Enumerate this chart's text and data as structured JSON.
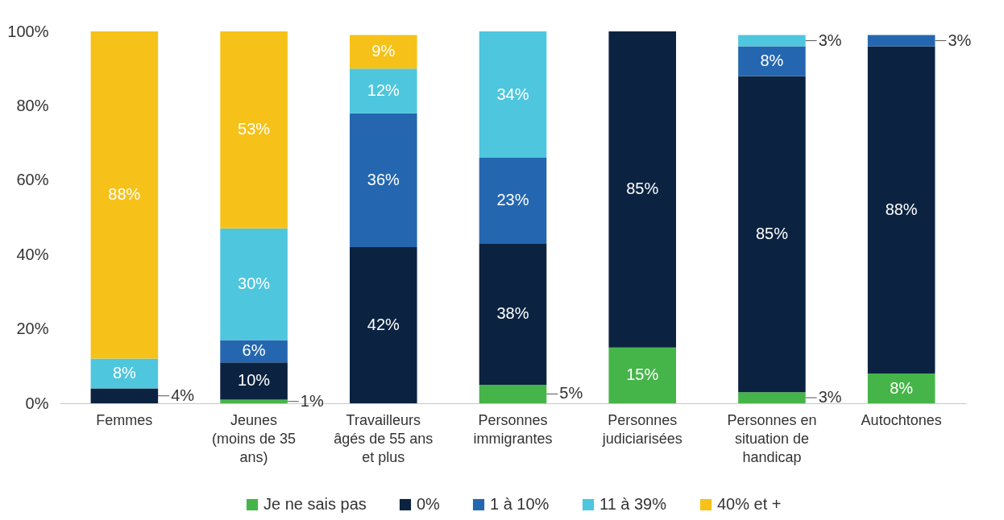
{
  "chart_data": {
    "type": "bar",
    "stacked": true,
    "categories": [
      "Femmes",
      "Jeunes (moins de 35 ans)",
      "Travailleurs âgés de 55 ans et plus",
      "Personnes immigrantes",
      "Personnes judiciarisées",
      "Personnes en situation de handicap",
      "Autochtones"
    ],
    "series": [
      {
        "name": "Je ne sais pas",
        "color": "#46b549",
        "values": [
          null,
          1,
          null,
          5,
          15,
          3,
          8
        ],
        "value_labels": [
          null,
          "1%",
          null,
          "5%",
          "15%",
          "3%",
          "8%"
        ]
      },
      {
        "name": "0%",
        "color": "#0b2341",
        "values": [
          4,
          10,
          42,
          38,
          85,
          85,
          88
        ],
        "value_labels": [
          "4%",
          "10%",
          "42%",
          "38%",
          "85%",
          "85%",
          "88%"
        ]
      },
      {
        "name": "1 à 10%",
        "color": "#2467b0",
        "values": [
          null,
          6,
          36,
          23,
          null,
          8,
          3
        ],
        "value_labels": [
          null,
          "6%",
          "36%",
          "23%",
          null,
          "8%",
          "3%"
        ]
      },
      {
        "name": "11 à 39%",
        "color": "#4ec6de",
        "values": [
          8,
          30,
          12,
          34,
          null,
          3,
          null
        ],
        "value_labels": [
          "8%",
          "30%",
          "12%",
          "34%",
          null,
          "3%",
          null
        ]
      },
      {
        "name": "40% et +",
        "color": "#f6c21a",
        "values": [
          88,
          53,
          9,
          null,
          null,
          null,
          null
        ],
        "value_labels": [
          "88%",
          "53%",
          "9%",
          null,
          null,
          null,
          null
        ]
      }
    ],
    "ylim": [
      0,
      100
    ],
    "yticks": [
      {
        "value": 0,
        "label": "0%"
      },
      {
        "value": 20,
        "label": "20%"
      },
      {
        "value": 40,
        "label": "40%"
      },
      {
        "value": 60,
        "label": "60%"
      },
      {
        "value": 80,
        "label": "80%"
      },
      {
        "value": 100,
        "label": "100%"
      }
    ],
    "grid": false,
    "legend": "bottom"
  }
}
